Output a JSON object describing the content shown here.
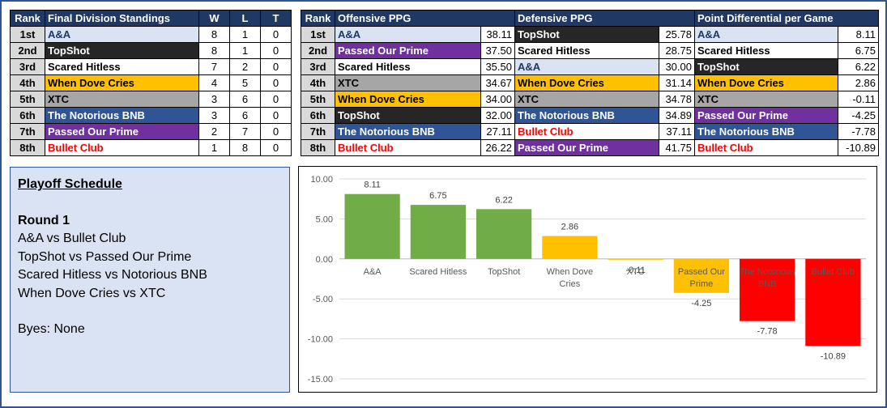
{
  "colors": {
    "header_bg": "#1f3864",
    "rank_bg": "#d9d9d9",
    "schedule_bg": "#dae3f3",
    "bar_green": "#70ad47",
    "bar_yellow": "#ffc000",
    "bar_red": "#ff0000"
  },
  "standings": {
    "headers": [
      "Rank",
      "Final Division Standings",
      "W",
      "L",
      "T"
    ],
    "rows": [
      {
        "rank": "1st",
        "team": "A&A",
        "team_class": "t-aa",
        "w": "8",
        "l": "1",
        "t": "0"
      },
      {
        "rank": "2nd",
        "team": "TopShot",
        "team_class": "t-topshot",
        "w": "8",
        "l": "1",
        "t": "0"
      },
      {
        "rank": "3rd",
        "team": "Scared Hitless",
        "team_class": "t-scared",
        "w": "7",
        "l": "2",
        "t": "0"
      },
      {
        "rank": "4th",
        "team": "When Dove Cries",
        "team_class": "t-dove",
        "w": "4",
        "l": "5",
        "t": "0"
      },
      {
        "rank": "5th",
        "team": "XTC",
        "team_class": "t-xtc",
        "w": "3",
        "l": "6",
        "t": "0"
      },
      {
        "rank": "6th",
        "team": "The Notorious BNB",
        "team_class": "t-bnb",
        "w": "3",
        "l": "6",
        "t": "0"
      },
      {
        "rank": "7th",
        "team": "Passed Our Prime",
        "team_class": "t-prime",
        "w": "2",
        "l": "7",
        "t": "0"
      },
      {
        "rank": "8th",
        "team": "Bullet Club",
        "team_class": "t-bullet",
        "w": "1",
        "l": "8",
        "t": "0"
      }
    ]
  },
  "stats": {
    "headers": [
      "Rank",
      "Offensive PPG",
      "Defensive PPG",
      "Point Differential per Game"
    ],
    "rows": [
      {
        "rank": "1st",
        "off_team": "A&A",
        "off_class": "t-aa",
        "off_val": "38.11",
        "def_team": "TopShot",
        "def_class": "t-topshot",
        "def_val": "25.78",
        "diff_team": "A&A",
        "diff_class": "t-aa",
        "diff_val": "8.11"
      },
      {
        "rank": "2nd",
        "off_team": "Passed Our Prime",
        "off_class": "t-prime",
        "off_val": "37.50",
        "def_team": "Scared Hitless",
        "def_class": "t-scared",
        "def_val": "28.75",
        "diff_team": "Scared Hitless",
        "diff_class": "t-scared",
        "diff_val": "6.75"
      },
      {
        "rank": "3rd",
        "off_team": "Scared Hitless",
        "off_class": "t-scared",
        "off_val": "35.50",
        "def_team": "A&A",
        "def_class": "t-aa",
        "def_val": "30.00",
        "diff_team": "TopShot",
        "diff_class": "t-topshot",
        "diff_val": "6.22"
      },
      {
        "rank": "4th",
        "off_team": "XTC",
        "off_class": "t-xtc",
        "off_val": "34.67",
        "def_team": "When Dove Cries",
        "def_class": "t-dove",
        "def_val": "31.14",
        "diff_team": "When Dove Cries",
        "diff_class": "t-dove",
        "diff_val": "2.86"
      },
      {
        "rank": "5th",
        "off_team": "When Dove Cries",
        "off_class": "t-dove",
        "off_val": "34.00",
        "def_team": "XTC",
        "def_class": "t-xtc",
        "def_val": "34.78",
        "diff_team": "XTC",
        "diff_class": "t-xtc",
        "diff_val": "-0.11"
      },
      {
        "rank": "6th",
        "off_team": "TopShot",
        "off_class": "t-topshot",
        "off_val": "32.00",
        "def_team": "The Notorious BNB",
        "def_class": "t-bnb",
        "def_val": "34.89",
        "diff_team": "Passed Our Prime",
        "diff_class": "t-prime",
        "diff_val": "-4.25"
      },
      {
        "rank": "7th",
        "off_team": "The Notorious BNB",
        "off_class": "t-bnb",
        "off_val": "27.11",
        "def_team": "Bullet Club",
        "def_class": "t-bullet",
        "def_val": "37.11",
        "diff_team": "The Notorious BNB",
        "diff_class": "t-bnb",
        "diff_val": "-7.78"
      },
      {
        "rank": "8th",
        "off_team": "Bullet Club",
        "off_class": "t-bullet",
        "off_val": "26.22",
        "def_team": "Passed Our Prime",
        "def_class": "t-prime",
        "def_val": "41.75",
        "diff_team": "Bullet Club",
        "diff_class": "t-bullet",
        "diff_val": "-10.89"
      }
    ]
  },
  "schedule": {
    "title": "Playoff Schedule",
    "round_label": "Round 1",
    "matchups": [
      "A&A vs Bullet Club",
      "TopShot vs Passed Our Prime",
      "Scared Hitless vs Notorious BNB",
      "When Dove Cries vs XTC"
    ],
    "byes": "Byes: None"
  },
  "chart_data": {
    "type": "bar",
    "title": "",
    "xlabel": "",
    "ylabel": "",
    "ylim": [
      -15,
      10
    ],
    "yticks": [
      "10.00",
      "5.00",
      "0.00",
      "-5.00",
      "-10.00",
      "-15.00"
    ],
    "grid": true,
    "legend": "none",
    "categories": [
      [
        "A&A"
      ],
      [
        "Scared Hitless"
      ],
      [
        "TopShot"
      ],
      [
        "When Dove",
        "Cries"
      ],
      [
        "XTC"
      ],
      [
        "Passed Our",
        "Prime"
      ],
      [
        "The Notorious",
        "BNB"
      ],
      [
        "Bullet Club"
      ]
    ],
    "values": [
      8.11,
      6.75,
      6.22,
      2.86,
      -0.11,
      -4.25,
      -7.78,
      -10.89
    ],
    "value_labels": [
      "8.11",
      "6.75",
      "6.22",
      "2.86",
      "-0.11",
      "-4.25",
      "-7.78",
      "-10.89"
    ],
    "bar_colors": [
      "#70ad47",
      "#70ad47",
      "#70ad47",
      "#ffc000",
      "#ffc000",
      "#ffc000",
      "#ff0000",
      "#ff0000"
    ]
  }
}
